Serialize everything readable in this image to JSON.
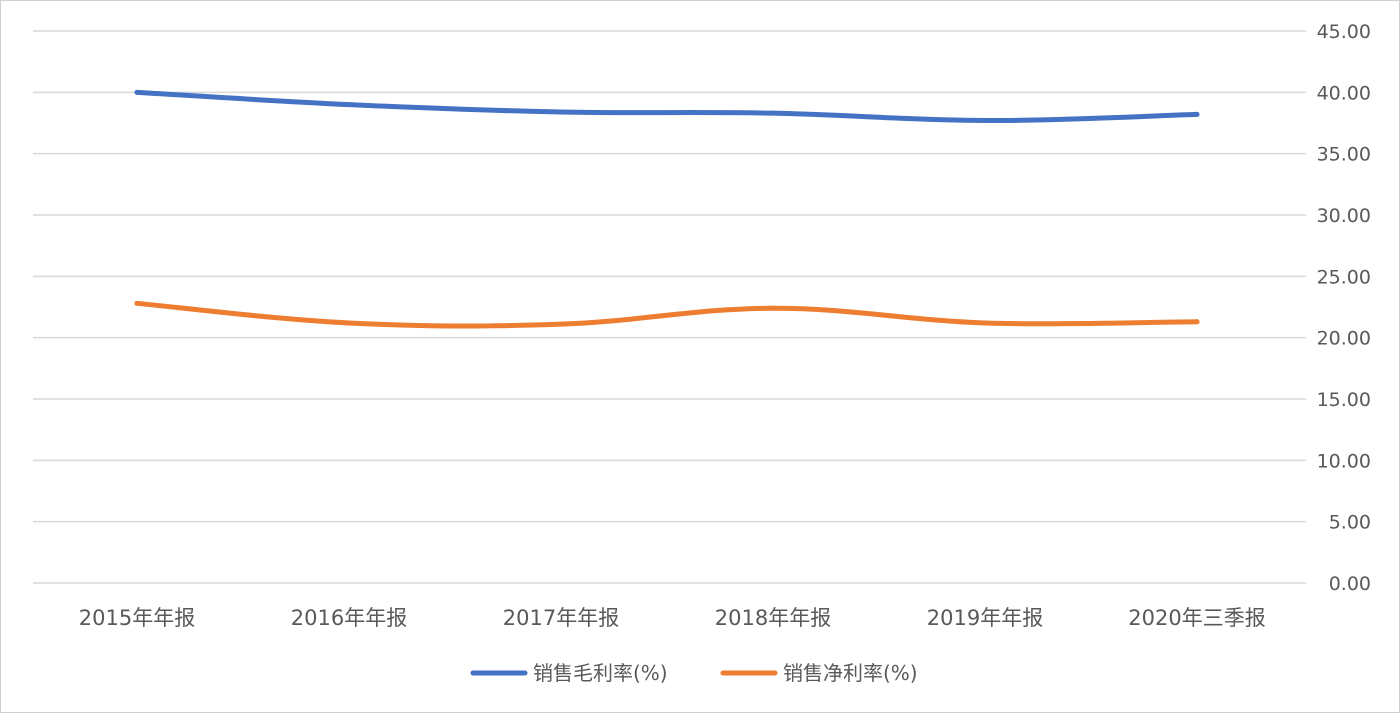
{
  "chart_data": {
    "type": "line",
    "categories": [
      "2015年年报",
      "2016年年报",
      "2017年年报",
      "2018年年报",
      "2019年年报",
      "2020年三季报"
    ],
    "series": [
      {
        "name": "销售毛利率(%)",
        "color": "#4472c4",
        "values": [
          40.0,
          39.0,
          38.4,
          38.3,
          37.7,
          38.2
        ]
      },
      {
        "name": "销售净利率(%)",
        "color": "#ed7d31",
        "values": [
          22.8,
          21.2,
          21.1,
          22.4,
          21.2,
          21.3
        ]
      }
    ],
    "ylim": [
      0,
      45
    ],
    "yticks": [
      "0.00",
      "5.00",
      "10.00",
      "15.00",
      "20.00",
      "25.00",
      "30.00",
      "35.00",
      "40.00",
      "45.00"
    ],
    "y_axis_position": "right",
    "grid": true,
    "legend_position": "bottom",
    "title": "",
    "xlabel": "",
    "ylabel": ""
  }
}
